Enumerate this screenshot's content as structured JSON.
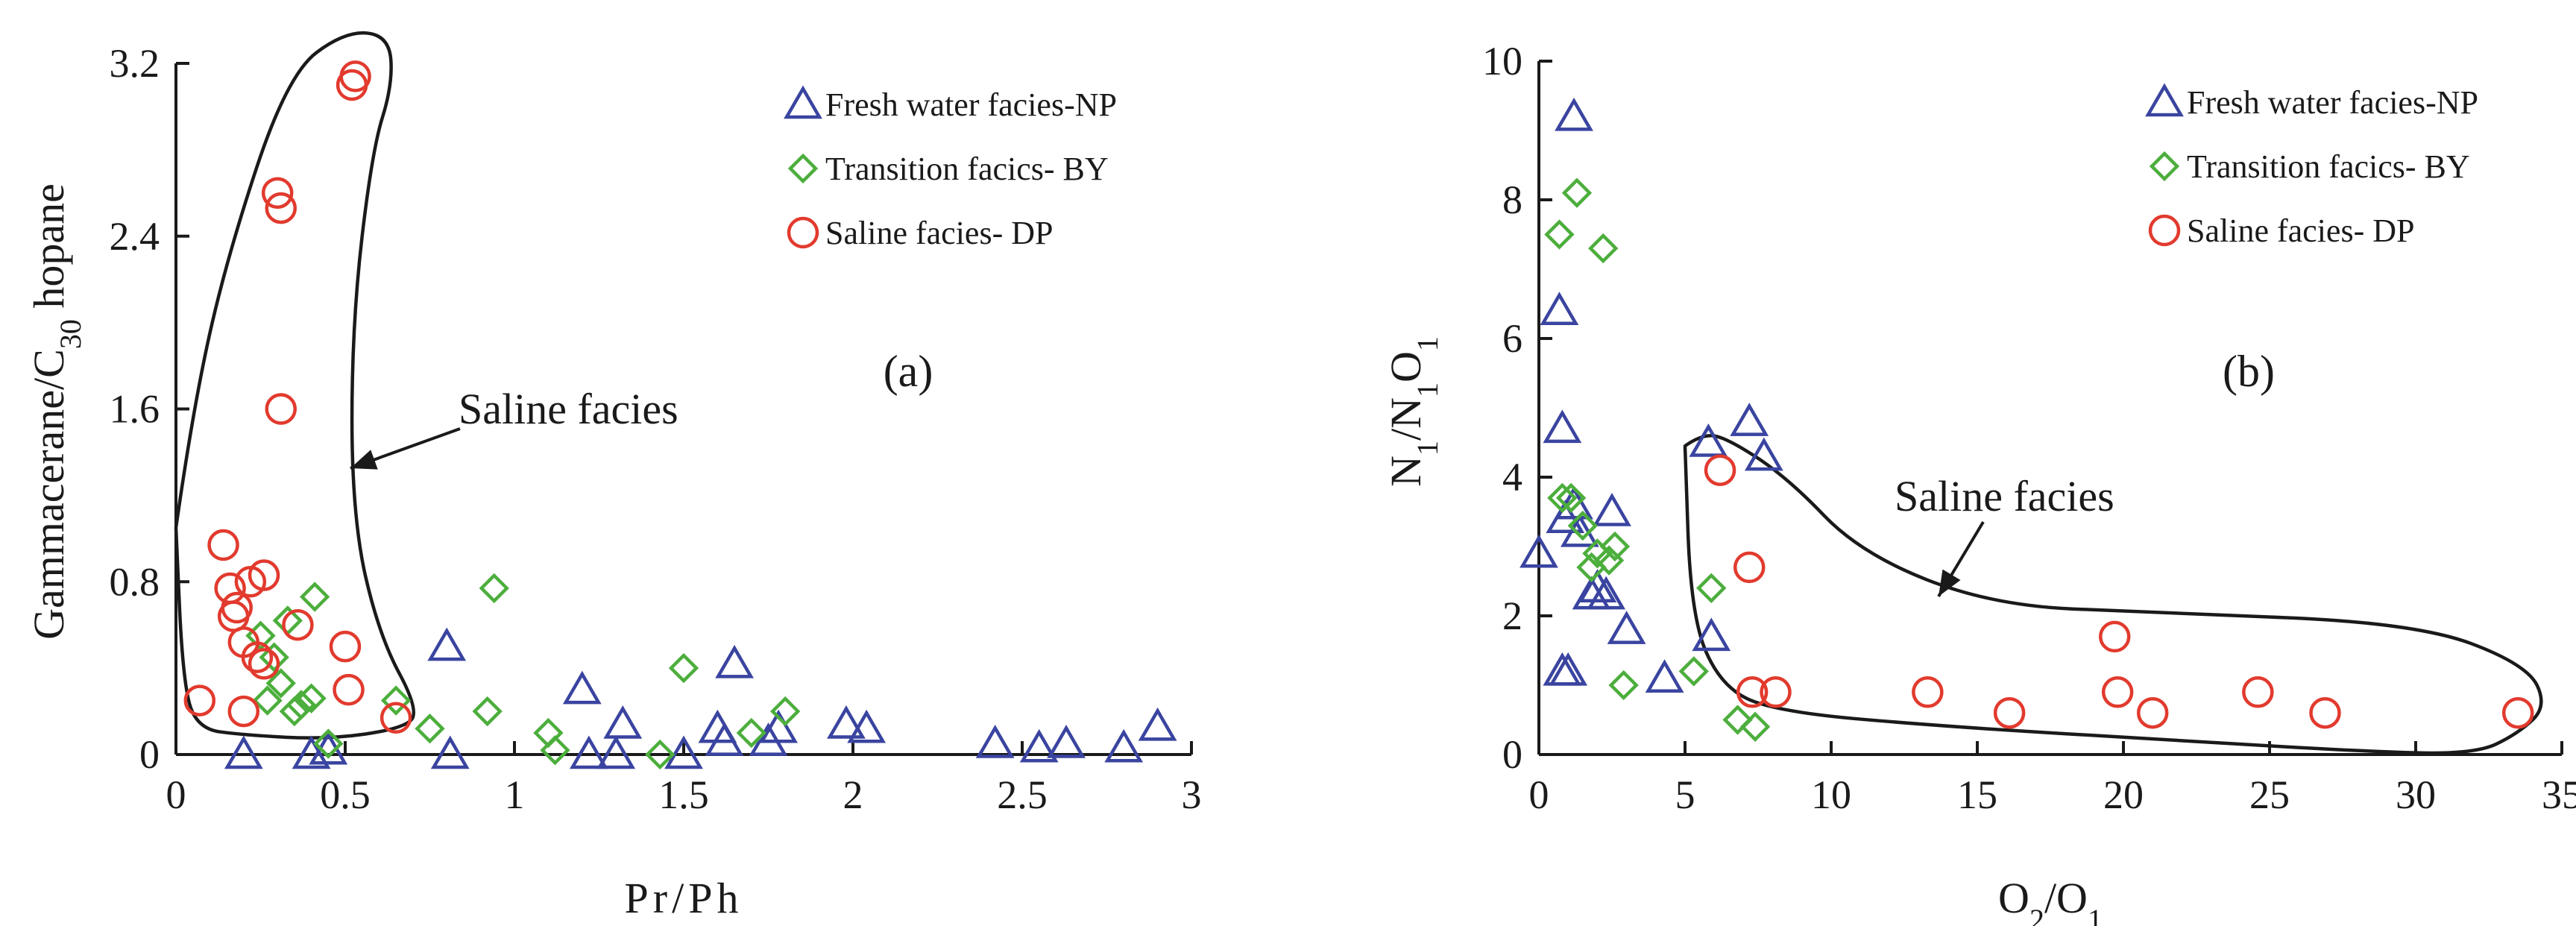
{
  "colors": {
    "fresh": "#3a44a0",
    "transition": "#4cae3c",
    "saline": "#e23a2e",
    "ink": "#1a1a1a"
  },
  "chart_data": [
    {
      "type": "scatter",
      "panel_label": "(a)",
      "xlabel": "Pr/Ph",
      "ylabel": {
        "main": "Gammacerane/C",
        "sub": "30",
        "tail": " hopane"
      },
      "xlim": [
        0,
        3
      ],
      "ylim": [
        0,
        3.2
      ],
      "x_ticks": [
        0,
        0.5,
        1,
        1.5,
        2,
        2.5,
        3
      ],
      "x_tick_labels": [
        "0",
        "0.5",
        "1",
        "1.5",
        "2",
        "2.5",
        "3"
      ],
      "y_ticks": [
        0,
        0.8,
        1.6,
        2.4,
        3.2
      ],
      "y_tick_labels": [
        "0",
        "0.8",
        "1.6",
        "2.4",
        "3.2"
      ],
      "legend_position": "top-right",
      "annotation": "Saline facies",
      "series": [
        {
          "name": "Fresh water facies-NP",
          "marker": "triangle",
          "x": [
            0.2,
            0.4,
            0.45,
            0.8,
            0.81,
            1.2,
            1.22,
            1.3,
            1.32,
            1.5,
            1.6,
            1.62,
            1.65,
            1.75,
            1.78,
            1.98,
            2.04,
            2.42,
            2.55,
            2.63,
            2.8,
            2.9
          ],
          "y": [
            0,
            0,
            0.02,
            0.5,
            0,
            0.3,
            0,
            0,
            0.14,
            0,
            0.12,
            0.06,
            0.42,
            0.06,
            0.12,
            0.14,
            0.12,
            0.05,
            0.03,
            0.05,
            0.03,
            0.13
          ]
        },
        {
          "name": "Transition facics- BY",
          "marker": "diamond",
          "x": [
            0.25,
            0.27,
            0.29,
            0.31,
            0.33,
            0.35,
            0.37,
            0.4,
            0.41,
            0.45,
            0.65,
            0.75,
            0.92,
            0.94,
            1.1,
            1.12,
            1.43,
            1.5,
            1.7,
            1.8
          ],
          "y": [
            0.55,
            0.25,
            0.45,
            0.33,
            0.62,
            0.2,
            0.23,
            0.26,
            0.73,
            0.05,
            0.25,
            0.12,
            0.2,
            0.77,
            0.1,
            0.02,
            0,
            0.4,
            0.1,
            0.2
          ]
        },
        {
          "name": "Saline facies- DP",
          "marker": "circle",
          "x": [
            0.07,
            0.14,
            0.16,
            0.17,
            0.18,
            0.2,
            0.2,
            0.22,
            0.24,
            0.26,
            0.26,
            0.3,
            0.31,
            0.31,
            0.36,
            0.5,
            0.51,
            0.52,
            0.53,
            0.65
          ],
          "y": [
            0.25,
            0.97,
            0.77,
            0.64,
            0.68,
            0.52,
            0.2,
            0.8,
            0.45,
            0.42,
            0.83,
            2.6,
            2.53,
            1.6,
            0.6,
            0.5,
            0.3,
            3.1,
            3.14,
            0.17
          ]
        }
      ]
    },
    {
      "type": "scatter",
      "panel_label": "(b)",
      "xlabel": {
        "main": "O",
        "sub1": "2",
        "mid": "/O",
        "sub2": "1"
      },
      "ylabel": {
        "main": "N",
        "sub1": "1",
        "mid": "/N",
        "sub2": "1",
        "tail": "O",
        "sub3": "1"
      },
      "xlim": [
        0,
        35
      ],
      "ylim": [
        0,
        10
      ],
      "x_ticks": [
        0,
        5,
        10,
        15,
        20,
        25,
        30,
        35
      ],
      "x_tick_labels": [
        "0",
        "5",
        "10",
        "15",
        "20",
        "25",
        "30",
        "35"
      ],
      "y_ticks": [
        0,
        2,
        4,
        6,
        8,
        10
      ],
      "y_tick_labels": [
        "0",
        "2",
        "4",
        "6",
        "8",
        "10"
      ],
      "legend_position": "top-right",
      "annotation": "Saline facies",
      "series": [
        {
          "name": "Fresh water facies-NP",
          "marker": "triangle",
          "x": [
            0,
            0.7,
            0.8,
            0.8,
            0.9,
            1.0,
            1.2,
            1.2,
            1.4,
            1.8,
            2.0,
            2.3,
            2.5,
            3.0,
            4.3,
            5.8,
            5.9,
            7.2,
            7.7
          ],
          "y": [
            2.9,
            6.4,
            4.7,
            1.2,
            3.4,
            1.2,
            9.2,
            3.6,
            3.2,
            2.3,
            2.4,
            2.3,
            3.5,
            1.8,
            1.1,
            4.5,
            1.7,
            4.8,
            4.3
          ],
          "y_alt": null
        },
        {
          "name": "Transition facics- BY",
          "marker": "diamond",
          "x": [
            0.7,
            0.8,
            1.1,
            1.3,
            1.5,
            1.8,
            2.0,
            2.2,
            2.4,
            2.6,
            2.9,
            5.3,
            5.9,
            6.8,
            7.4
          ],
          "y": [
            7.5,
            3.7,
            3.7,
            8.1,
            3.3,
            2.7,
            2.9,
            7.3,
            2.8,
            3.0,
            1.0,
            1.2,
            2.4,
            0.5,
            0.4
          ]
        },
        {
          "name": "Saline facies- DP",
          "marker": "circle",
          "x": [
            6.2,
            7.2,
            7.3,
            8.1,
            13.3,
            16.1,
            19.7,
            19.8,
            21.0,
            24.6,
            26.9,
            33.5
          ],
          "y": [
            4.1,
            2.7,
            0.9,
            0.9,
            0.9,
            0.6,
            1.7,
            0.9,
            0.6,
            0.9,
            0.6,
            0.6
          ]
        }
      ]
    }
  ]
}
